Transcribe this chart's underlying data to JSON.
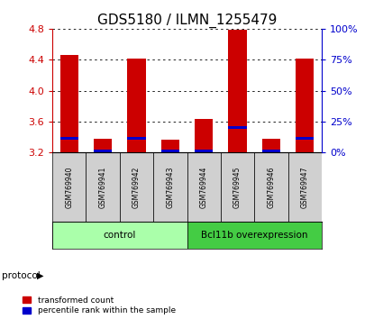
{
  "title": "GDS5180 / ILMN_1255479",
  "samples": [
    "GSM769940",
    "GSM769941",
    "GSM769942",
    "GSM769943",
    "GSM769944",
    "GSM769945",
    "GSM769946",
    "GSM769947"
  ],
  "red_values": [
    4.46,
    3.38,
    4.41,
    3.37,
    3.63,
    4.79,
    3.38,
    4.41
  ],
  "blue_values": [
    3.38,
    3.22,
    3.38,
    3.22,
    3.22,
    3.52,
    3.22,
    3.38
  ],
  "bar_bottom": 3.2,
  "ylim": [
    3.2,
    4.8
  ],
  "yticks_left": [
    3.2,
    3.6,
    4.0,
    4.4,
    4.8
  ],
  "right_yticks_pct": [
    0,
    25,
    50,
    75,
    100
  ],
  "groups": [
    {
      "label": "control",
      "start": 0,
      "end": 4,
      "color": "#aaffaa"
    },
    {
      "label": "Bcl11b overexpression",
      "start": 4,
      "end": 8,
      "color": "#44cc44"
    }
  ],
  "protocol_label": "protocol",
  "red_color": "#cc0000",
  "blue_color": "#0000cc",
  "bar_width": 0.55,
  "background_color": "#ffffff",
  "left_axis_color": "#cc0000",
  "right_axis_color": "#0000cc",
  "blue_bar_height": 0.035
}
